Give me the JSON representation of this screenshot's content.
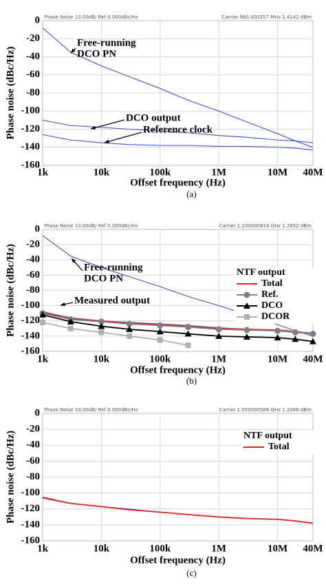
{
  "chart_data": [
    {
      "type": "line",
      "header": "Phase Noise 10.00dB/ Ref 0.000dBc/Hz",
      "carrier": "Carrier 960.000357 MHz   1.4142 dBm",
      "caption": "(a)",
      "x_label": "Offset frequency (Hz)",
      "y_label": "Phase noise (dBc/Hz)",
      "xscale": "log",
      "grid": true,
      "xlim": [
        1000,
        40000000
      ],
      "ylim": [
        -160,
        0
      ],
      "xticks": [
        {
          "value": 1000,
          "label": "1k"
        },
        {
          "value": 10000,
          "label": "10k"
        },
        {
          "value": 100000,
          "label": "100k"
        },
        {
          "value": 1000000,
          "label": "1M"
        },
        {
          "value": 10000000,
          "label": "10M"
        },
        {
          "value": 40000000,
          "label": "40M"
        }
      ],
      "yticks": [
        -160,
        -140,
        -120,
        -100,
        -80,
        -60,
        -40,
        -20,
        0
      ],
      "x": [
        1000,
        3000,
        10000,
        30000,
        100000,
        300000,
        1000000,
        3000000,
        10000000,
        20000000,
        40000000
      ],
      "series": [
        {
          "color": "#3a4fc8",
          "values": [
            -8,
            -35,
            -50,
            -62,
            -75,
            -88,
            -100,
            -112,
            -125,
            -133,
            -140
          ]
        },
        {
          "color": "#3a4fc8",
          "values": [
            -110,
            -116,
            -118,
            -120,
            -122,
            -124,
            -127,
            -129,
            -132,
            -133,
            -135
          ]
        },
        {
          "color": "#3a4fc8",
          "values": [
            -126,
            -132,
            -135,
            -137,
            -138,
            -138,
            -139,
            -139,
            -140,
            -141,
            -143
          ]
        }
      ],
      "annotations": [
        "Free-running",
        "DCO PN",
        "DCO output",
        "Reference clock"
      ]
    },
    {
      "type": "line",
      "header": "Phase Noise 10.00dB/ Ref 0.000dBc/Hz",
      "carrier": "Carrier 1.100000816 GHz   1.2652 dBm",
      "caption": "(b)",
      "x_label": "Offset frequency (Hz)",
      "y_label": "Phase noise (dBc/Hz)",
      "xscale": "log",
      "grid": true,
      "xlim": [
        1000,
        40000000
      ],
      "ylim": [
        -160,
        0
      ],
      "xticks": [
        {
          "value": 1000,
          "label": "1k"
        },
        {
          "value": 10000,
          "label": "10k"
        },
        {
          "value": 100000,
          "label": "100k"
        },
        {
          "value": 1000000,
          "label": "1M"
        },
        {
          "value": 10000000,
          "label": "10M"
        },
        {
          "value": 40000000,
          "label": "40M"
        }
      ],
      "yticks": [
        -160,
        -140,
        -120,
        -100,
        -80,
        -60,
        -40,
        -20,
        0
      ],
      "x": [
        1000,
        3000,
        10000,
        30000,
        100000,
        300000,
        1000000,
        3000000,
        10000000,
        20000000,
        40000000
      ],
      "legend_title": "NTF output",
      "legend": "right",
      "series": [
        {
          "color": "#3a4fc8",
          "values": [
            -8,
            -35,
            -50,
            -62,
            -75,
            -88,
            -100,
            -112,
            -125,
            -133,
            -140
          ]
        },
        {
          "color": "#3a4fc8",
          "values": [
            -108,
            -116,
            -120,
            -122,
            -124,
            -126,
            -129,
            -131,
            -132,
            -134,
            -136
          ]
        },
        {
          "name": "Total",
          "color": "#e02020",
          "values": [
            -109,
            -117,
            -120,
            -123,
            -125,
            -127,
            -130,
            -131,
            -132,
            -134,
            -137
          ]
        },
        {
          "name": "Ref.",
          "color": "#808080",
          "marker": "circle",
          "values": [
            -110,
            -118,
            -121,
            -124,
            -126,
            -128,
            -131,
            -132,
            -133,
            -135,
            -137
          ]
        },
        {
          "name": "DCO",
          "color": "#000000",
          "marker": "triangle",
          "values": [
            -112,
            -121,
            -127,
            -131,
            -134,
            -137,
            -140,
            -141,
            -142,
            -144,
            -147
          ]
        },
        {
          "name": "DCOR",
          "color": "#b0b0b0",
          "marker": "square",
          "values": [
            -122,
            -130,
            -135,
            -140,
            -145,
            -152,
            null,
            null,
            null,
            null,
            null
          ]
        }
      ],
      "annotations": [
        "Free-running",
        "DCO PN",
        "Measured output"
      ]
    },
    {
      "type": "line",
      "header": "Phase Noise 10.00dB/ Ref 0.000dBc/Hz",
      "carrier": "Carrier 1.050000586 GHz   1.2066 dBm",
      "caption": "(c)",
      "x_label": "Offset frequency (Hz)",
      "y_label": "Phase noise (dBc/Hz)",
      "xscale": "log",
      "grid": true,
      "xlim": [
        1000,
        40000000
      ],
      "ylim": [
        -160,
        0
      ],
      "xticks": [
        {
          "value": 1000,
          "label": "1k"
        },
        {
          "value": 10000,
          "label": "10k"
        },
        {
          "value": 100000,
          "label": "100k"
        },
        {
          "value": 1000000,
          "label": "1M"
        },
        {
          "value": 10000000,
          "label": "10M"
        },
        {
          "value": 40000000,
          "label": "40M"
        }
      ],
      "yticks": [
        -160,
        -140,
        -120,
        -100,
        -80,
        -60,
        -40,
        -20,
        0
      ],
      "x": [
        1000,
        3000,
        10000,
        30000,
        100000,
        300000,
        1000000,
        3000000,
        10000000,
        20000000,
        40000000
      ],
      "legend_title": "NTF output",
      "legend": "right",
      "series": [
        {
          "color": "#3a4fc8",
          "values": [
            -105,
            -113,
            -117,
            -120,
            -124,
            -127,
            -130,
            -132,
            -133,
            -135,
            -138
          ]
        },
        {
          "name": "Total",
          "color": "#e02020",
          "values": [
            -106,
            -113,
            -117,
            -121,
            -124,
            -127,
            -130,
            -132,
            -133,
            -135,
            -138
          ]
        }
      ],
      "annotations": []
    }
  ]
}
